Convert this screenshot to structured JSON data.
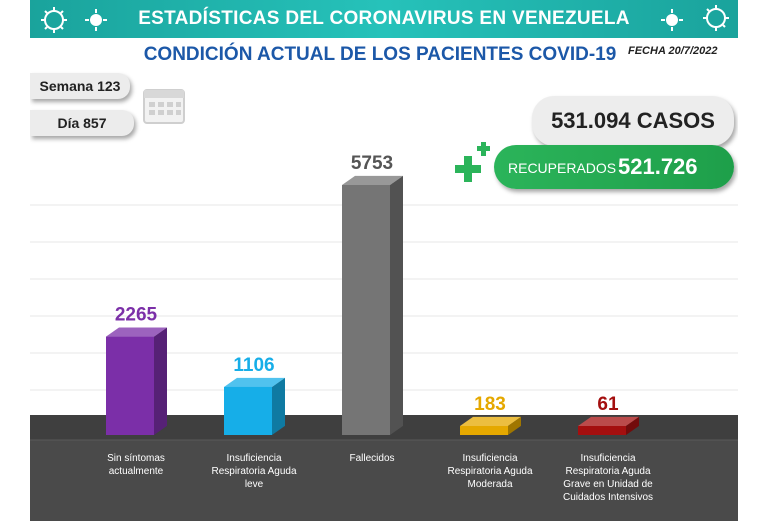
{
  "header": {
    "title": "ESTADÍSTICAS DEL CORONAVIRUS EN VENEZUELA",
    "subtitle": "CONDICIÓN ACTUAL DE LOS PACIENTES COVID-19",
    "fecha": "FECHA 20/7/2022"
  },
  "week": {
    "label": "Semana 123"
  },
  "day": {
    "label": "Día 857"
  },
  "summary": {
    "casos": "531.094 CASOS",
    "recuperados_label": "RECUPERADOS",
    "recuperados_value": "521.726"
  },
  "colors": {
    "banner": "#1aa39c",
    "subtitle": "#1c58a8",
    "recuperados": "#2bb45a"
  },
  "icons": [
    "virus-icon",
    "calendar-icon",
    "plus-icon"
  ],
  "chart_data": {
    "type": "bar",
    "style": "3d",
    "categories": [
      [
        "Sin síntomas",
        "actualmente"
      ],
      [
        "Insuficiencia",
        "Respiratoria Aguda",
        "leve"
      ],
      [
        "Fallecidos"
      ],
      [
        "Insuficiencia",
        "Respiratoria Aguda",
        "Moderada"
      ],
      [
        "Insuficiencia",
        "Respiratoria Aguda",
        "Grave en Unidad de",
        "Cuidados Intensivos"
      ]
    ],
    "values": [
      2265,
      1106,
      5753,
      183,
      61
    ],
    "value_labels": [
      "2265",
      "1106",
      "5753",
      "183",
      "61"
    ],
    "bar_colors": [
      "#7b2fa8",
      "#16aee8",
      "#757575",
      "#e5a800",
      "#a40f0f"
    ],
    "label_colors": [
      "#7b2fa8",
      "#16aee8",
      "#555555",
      "#e5a800",
      "#a40f0f"
    ],
    "ylim": [
      0,
      5753
    ],
    "grid": true,
    "legend": "none"
  }
}
